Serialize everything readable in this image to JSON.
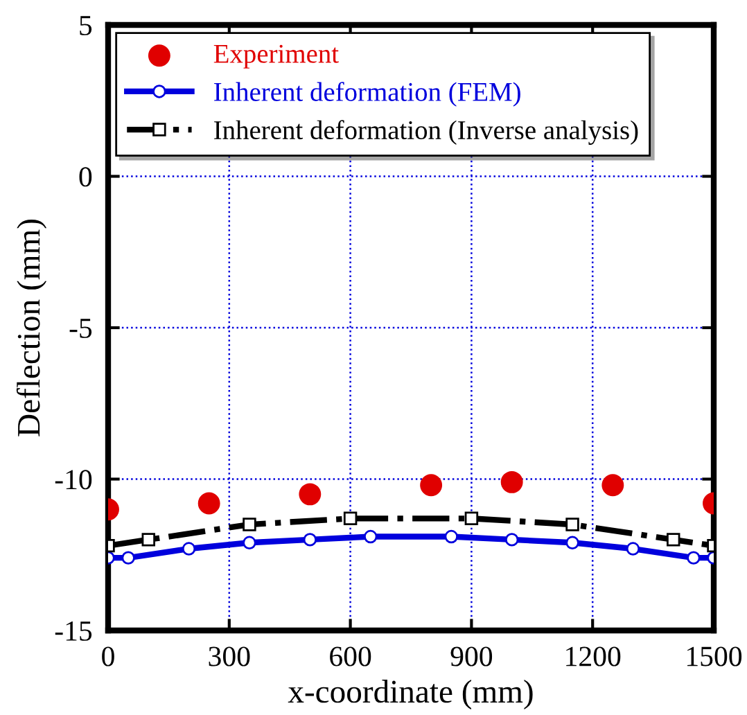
{
  "chart_data": {
    "type": "line",
    "xlabel": "x-coordinate (mm)",
    "ylabel": "Deflection (mm)",
    "xlim": [
      0,
      1500
    ],
    "xticks": [
      0,
      300,
      600,
      900,
      1200,
      1500
    ],
    "ylim": [
      -15,
      5
    ],
    "yticks": [
      -15,
      -10,
      -5,
      0,
      5
    ],
    "grid": true,
    "legend": "top left",
    "series": [
      {
        "name": "Experiment",
        "type": "scatter",
        "color": "#e00000",
        "marker": "circle",
        "x": [
          0,
          250,
          500,
          800,
          1000,
          1250,
          1500
        ],
        "values": [
          -11.0,
          -10.8,
          -10.5,
          -10.2,
          -10.1,
          -10.2,
          -10.8
        ]
      },
      {
        "name": "Inherent deformation (FEM)",
        "color": "#0000dd",
        "marker": "circle",
        "line_style": "solid",
        "x": [
          0,
          50,
          200,
          350,
          500,
          650,
          850,
          1000,
          1150,
          1300,
          1450,
          1500
        ],
        "values": [
          -12.6,
          -12.6,
          -12.3,
          -12.1,
          -12.0,
          -11.9,
          -11.9,
          -12.0,
          -12.1,
          -12.3,
          -12.6,
          -12.6
        ]
      },
      {
        "name": "Inherent deformation (Inverse analysis)",
        "color": "#000000",
        "marker": "square",
        "line_style": "dashdot",
        "x": [
          0,
          100,
          350,
          600,
          900,
          1150,
          1400,
          1500
        ],
        "values": [
          -12.2,
          -12.0,
          -11.5,
          -11.3,
          -11.3,
          -11.5,
          -12.0,
          -12.2
        ]
      }
    ]
  }
}
